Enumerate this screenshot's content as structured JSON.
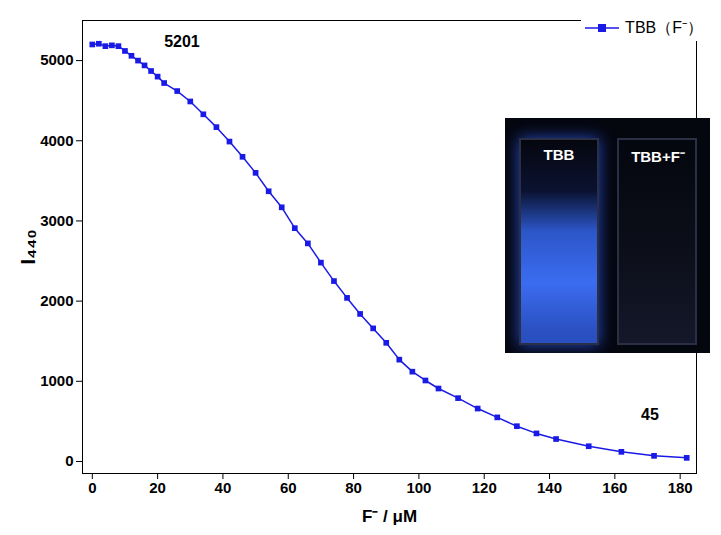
{
  "chart_data": {
    "type": "line",
    "x_label": "F⁻ / μM",
    "y_label": "I₄₄₀",
    "xlim": [
      -3,
      185
    ],
    "ylim": [
      -150,
      5500
    ],
    "xticks": [
      0,
      20,
      40,
      60,
      80,
      100,
      120,
      140,
      160,
      180
    ],
    "yticks": [
      0,
      1000,
      2000,
      3000,
      4000,
      5000
    ],
    "legend": "top-right",
    "series": [
      {
        "name": "TBB（F⁻）",
        "color": "#1a1ae6",
        "marker": "square",
        "line_style": "solid",
        "x": [
          0,
          2,
          4,
          6,
          8,
          10,
          12,
          14,
          16,
          18,
          20,
          22,
          26,
          30,
          34,
          38,
          42,
          46,
          50,
          54,
          58,
          62,
          66,
          70,
          74,
          78,
          82,
          86,
          90,
          94,
          98,
          102,
          106,
          112,
          118,
          124,
          130,
          136,
          142,
          152,
          162,
          172,
          182
        ],
        "values": [
          5201,
          5210,
          5180,
          5190,
          5180,
          5120,
          5060,
          5000,
          4940,
          4870,
          4800,
          4720,
          4620,
          4490,
          4330,
          4170,
          3990,
          3800,
          3600,
          3370,
          3170,
          2910,
          2720,
          2480,
          2250,
          2040,
          1840,
          1660,
          1480,
          1270,
          1120,
          1010,
          910,
          790,
          660,
          550,
          440,
          350,
          280,
          190,
          120,
          70,
          45
        ]
      }
    ],
    "annotations": [
      {
        "text": "5201",
        "x": 22,
        "y": 5230
      },
      {
        "text": "45",
        "x": 168,
        "y": 580
      }
    ],
    "inset_labels": [
      "TBB",
      "TBB+F⁻"
    ]
  }
}
